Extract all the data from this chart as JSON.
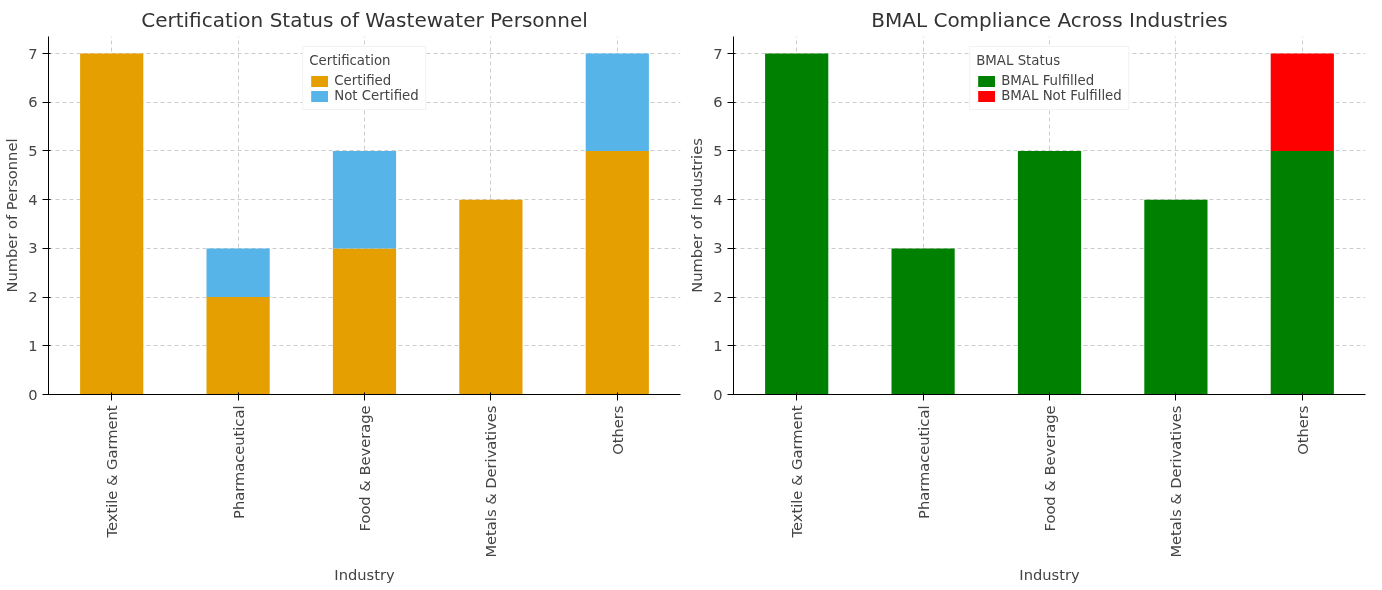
{
  "chart_data": [
    {
      "type": "bar",
      "title": "Certification Status of Wastewater Personnel",
      "xlabel": "Industry",
      "ylabel": "Number of Personnel",
      "legend_title": "Certification",
      "categories": [
        "Textile & Garment",
        "Pharmaceutical",
        "Food & Beverage",
        "Metals & Derivatives",
        "Others"
      ],
      "series": [
        {
          "name": "Certified",
          "color": "#e69f00",
          "values": [
            7,
            2,
            3,
            4,
            5
          ]
        },
        {
          "name": "Not Certified",
          "color": "#56b4e9",
          "values": [
            0,
            1,
            2,
            0,
            2
          ]
        }
      ],
      "stacked": true,
      "ylim": [
        0,
        7.35
      ],
      "yticks": [
        0,
        1,
        2,
        3,
        4,
        5,
        6,
        7
      ],
      "grid": true,
      "legend": "top"
    },
    {
      "type": "bar",
      "title": "BMAL Compliance Across Industries",
      "xlabel": "Industry",
      "ylabel": "Number of Industries",
      "legend_title": "BMAL Status",
      "categories": [
        "Textile & Garment",
        "Pharmaceutical",
        "Food & Beverage",
        "Metals & Derivatives",
        "Others"
      ],
      "series": [
        {
          "name": "BMAL Fulfilled",
          "color": "#008000",
          "values": [
            7,
            3,
            5,
            4,
            5
          ]
        },
        {
          "name": "BMAL Not Fulfilled",
          "color": "#ff0000",
          "values": [
            0,
            0,
            0,
            0,
            2
          ]
        }
      ],
      "stacked": true,
      "ylim": [
        0,
        7.35
      ],
      "yticks": [
        0,
        1,
        2,
        3,
        4,
        5,
        6,
        7
      ],
      "grid": true,
      "legend": "top"
    }
  ]
}
